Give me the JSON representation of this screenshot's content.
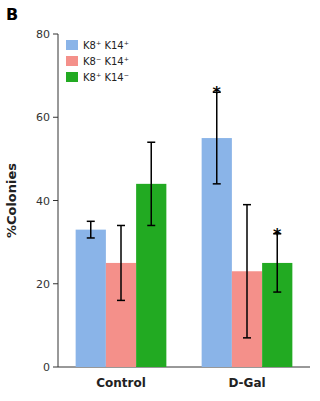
{
  "chart_data": {
    "type": "bar",
    "title": "B",
    "categories": [
      "Control",
      "D-Gal"
    ],
    "series": [
      {
        "name": "K8⁺ K14⁺",
        "color": "#8ab4e8",
        "values": [
          33,
          55
        ],
        "errors": [
          2,
          11
        ]
      },
      {
        "name": "K8⁻ K14⁺",
        "color": "#f4908a",
        "values": [
          25,
          23
        ],
        "errors": [
          9,
          16
        ]
      },
      {
        "name": "K8⁺ K14⁻",
        "color": "#22aa22",
        "values": [
          44,
          25
        ],
        "errors": [
          10,
          7
        ]
      }
    ],
    "y_label": "%Colonies",
    "ylim": [
      0,
      80
    ],
    "yticks": [
      0,
      20,
      40,
      60,
      80
    ],
    "grid": false,
    "legend": "upper left",
    "annotations": [
      {
        "text": "*",
        "category": "D-Gal",
        "series": "K8⁺ K14⁺"
      },
      {
        "text": "*",
        "category": "D-Gal",
        "series": "K8⁺ K14⁻"
      }
    ]
  }
}
